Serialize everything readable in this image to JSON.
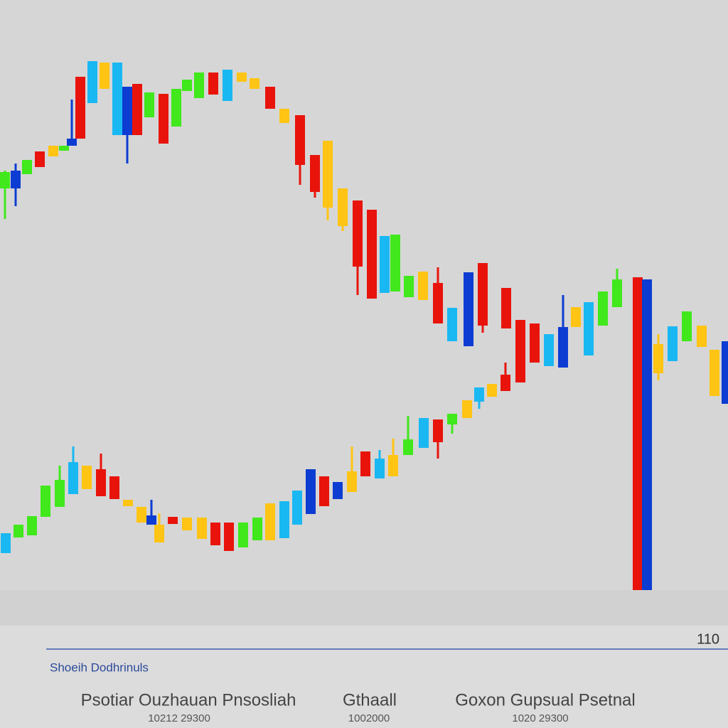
{
  "chart_data": {
    "type": "candlestick",
    "xlim": [
      0,
      1024
    ],
    "ylim": [
      0,
      750
    ],
    "series": [
      {
        "x": [
          7,
          22,
          38,
          56,
          75,
          90,
          101,
          113,
          130,
          147,
          165,
          179,
          193,
          210,
          230,
          248,
          263,
          280,
          300,
          320,
          340,
          358,
          380,
          400,
          422,
          443,
          461,
          482,
          503,
          523,
          541,
          556,
          575,
          595,
          616,
          636,
          659,
          679,
          712,
          732,
          752,
          772,
          792,
          810,
          828,
          848,
          868,
          897,
          910,
          926,
          946,
          966,
          987,
          1005,
          1022
        ],
        "open": [
          565,
          565,
          585,
          595,
          610,
          618,
          625,
          635,
          685,
          705,
          640,
          640,
          640,
          665,
          628,
          652,
          702,
          692,
          697,
          688,
          715,
          705,
          677,
          657,
          598,
          560,
          538,
          512,
          455,
          410,
          418,
          420,
          412,
          408,
          375,
          350,
          343,
          372,
          368,
          292,
          320,
          315,
          313,
          370,
          330,
          372,
          398,
          0,
          0,
          305,
          322,
          350,
          342,
          273,
          262
        ],
        "close": [
          588,
          590,
          605,
          617,
          625,
          625,
          635,
          722,
          744,
          742,
          742,
          708,
          712,
          700,
          698,
          705,
          718,
          728,
          728,
          732,
          728,
          720,
          708,
          677,
          668,
          612,
          632,
          565,
          548,
          535,
          498,
          500,
          442,
          448,
          432,
          397,
          447,
          460,
          425,
          380,
          375,
          360,
          370,
          398,
          405,
          420,
          437,
          440,
          437,
          346,
          371,
          392,
          372,
          338,
          350
        ],
        "high": [
          590,
          600,
          605,
          617,
          625,
          625,
          690,
          722,
          744,
          742,
          742,
          708,
          712,
          700,
          698,
          705,
          718,
          728,
          728,
          732,
          728,
          720,
          708,
          677,
          668,
          612,
          632,
          565,
          548,
          535,
          498,
          500,
          442,
          448,
          454,
          397,
          447,
          460,
          425,
          380,
          375,
          360,
          415,
          398,
          405,
          420,
          452,
          440,
          437,
          360,
          371,
          392,
          372,
          338,
          350
        ],
        "low": [
          522,
          540,
          585,
          595,
          610,
          618,
          625,
          635,
          685,
          705,
          640,
          600,
          640,
          665,
          628,
          652,
          702,
          692,
          697,
          688,
          715,
          705,
          677,
          657,
          570,
          552,
          520,
          505,
          415,
          410,
          418,
          420,
          412,
          408,
          375,
          350,
          343,
          362,
          368,
          292,
          320,
          315,
          313,
          370,
          330,
          372,
          398,
          0,
          0,
          295,
          322,
          350,
          342,
          273,
          262
        ],
        "colors": [
          "#40e81c",
          "#0c3cd2",
          "#40e81c",
          "#e8140c",
          "#ffc414",
          "#40e81c",
          "#0c3cd2",
          "#e8140c",
          "#1ab8f2",
          "#ffc414",
          "#1ab8f2",
          "#0c3cd2",
          "#e8140c",
          "#40e81c",
          "#e8140c",
          "#40e81c",
          "#40e81c",
          "#40e81c",
          "#e8140c",
          "#1ab8f2",
          "#ffc414",
          "#ffc414",
          "#e8140c",
          "#ffc414",
          "#e8140c",
          "#e8140c",
          "#ffc414",
          "#ffc414",
          "#e8140c",
          "#e8140c",
          "#1ab8f2",
          "#40e81c",
          "#40e81c",
          "#ffc414",
          "#e8140c",
          "#1ab8f2",
          "#0c3cd2",
          "#e8140c",
          "#e8140c",
          "#e8140c",
          "#e8140c",
          "#1ab8f2",
          "#0c3cd2",
          "#ffc414",
          "#1ab8f2",
          "#40e81c",
          "#40e81c",
          "#e8140c",
          "#0c3cd2",
          "#ffc414",
          "#1ab8f2",
          "#40e81c",
          "#ffc414",
          "#ffc414",
          "#0c3cd2"
        ]
      },
      {
        "x": [
          8,
          26,
          45,
          64,
          84,
          103,
          122,
          142,
          161,
          180,
          199,
          213,
          224,
          243,
          263,
          284,
          303,
          322,
          342,
          362,
          380,
          400,
          418,
          437,
          456,
          475,
          495,
          514,
          534,
          553,
          574,
          596,
          616,
          636,
          657,
          674,
          692,
          711
        ],
        "open": [
          52,
          74,
          77,
          103,
          117,
          135,
          142,
          132,
          128,
          118,
          95,
          92,
          67,
          93,
          84,
          72,
          63,
          55,
          60,
          70,
          70,
          73,
          92,
          107,
          118,
          128,
          138,
          160,
          157,
          160,
          190,
          200,
          208,
          233,
          242,
          265,
          272,
          280
        ],
        "close": [
          80,
          92,
          104,
          147,
          155,
          180,
          175,
          170,
          160,
          127,
          117,
          105,
          92,
          103,
          102,
          102,
          95,
          95,
          95,
          102,
          122,
          125,
          140,
          170,
          160,
          152,
          167,
          195,
          185,
          190,
          212,
          242,
          240,
          248,
          267,
          285,
          290,
          303
        ],
        "high": [
          80,
          92,
          104,
          147,
          175,
          202,
          175,
          192,
          160,
          127,
          117,
          127,
          108,
          103,
          102,
          102,
          95,
          95,
          95,
          102,
          122,
          125,
          140,
          170,
          160,
          152,
          202,
          195,
          197,
          213,
          245,
          242,
          240,
          248,
          267,
          285,
          290,
          320
        ],
        "low": [
          52,
          74,
          77,
          103,
          117,
          135,
          142,
          132,
          128,
          118,
          95,
          92,
          67,
          93,
          84,
          72,
          63,
          55,
          60,
          70,
          70,
          73,
          92,
          107,
          118,
          128,
          138,
          160,
          157,
          160,
          190,
          200,
          185,
          220,
          242,
          255,
          272,
          280
        ],
        "colors": [
          "#1ab8f2",
          "#40e81c",
          "#40e81c",
          "#40e81c",
          "#40e81c",
          "#1ab8f2",
          "#ffc414",
          "#e8140c",
          "#e8140c",
          "#ffc414",
          "#ffc414",
          "#0c3cd2",
          "#ffc414",
          "#e8140c",
          "#ffc414",
          "#ffc414",
          "#e8140c",
          "#e8140c",
          "#40e81c",
          "#40e81c",
          "#ffc414",
          "#1ab8f2",
          "#1ab8f2",
          "#0c3cd2",
          "#e8140c",
          "#0c3cd2",
          "#ffc414",
          "#e8140c",
          "#1ab8f2",
          "#ffc414",
          "#40e81c",
          "#1ab8f2",
          "#e8140c",
          "#40e81c",
          "#ffc414",
          "#1ab8f2",
          "#ffc414",
          "#e8140c"
        ]
      }
    ]
  },
  "footer": {
    "counter": "110",
    "tab": "Shoeih Dodhrinuls",
    "columns": [
      {
        "title": "Psotiar Ouzhauan Pnsosliah",
        "value": "10212 29300"
      },
      {
        "title": "Gthaall",
        "value": "1002000"
      },
      {
        "title": "Goxon Gupsual Psetnal",
        "value": "1020 29300"
      }
    ]
  }
}
